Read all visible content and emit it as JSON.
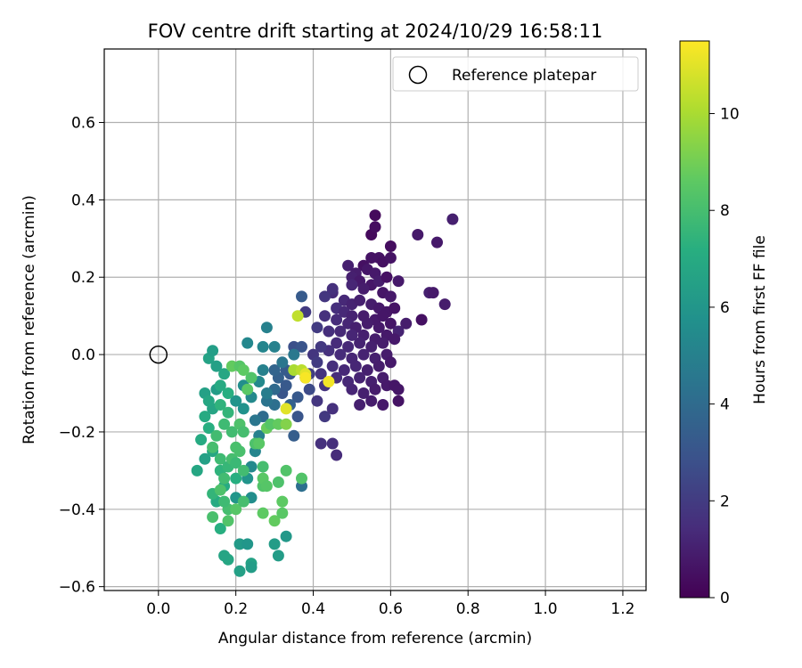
{
  "chart_data": {
    "type": "scatter",
    "title": "FOV centre drift starting at 2024/10/29 16:58:11",
    "xlabel": "Angular distance from reference (arcmin)",
    "ylabel": "Rotation from reference (arcmin)",
    "xlim": [
      -0.14,
      1.26
    ],
    "ylim": [
      -0.61,
      0.79
    ],
    "x_ticks": [
      0.0,
      0.2,
      0.4,
      0.6,
      0.8,
      1.0,
      1.2
    ],
    "x_tick_labels": [
      "0.0",
      "0.2",
      "0.4",
      "0.6",
      "0.8",
      "1.0",
      "1.2"
    ],
    "y_ticks": [
      -0.6,
      -0.4,
      -0.2,
      0.0,
      0.2,
      0.4,
      0.6
    ],
    "y_tick_labels": [
      "−0.6",
      "−0.4",
      "−0.2",
      "0.0",
      "0.2",
      "0.4",
      "0.6"
    ],
    "grid": true,
    "legend": {
      "placement": "top-right",
      "entries": [
        "Reference platepar"
      ]
    },
    "colorbar": {
      "label": "Hours from first FF file",
      "colormap": "viridis",
      "range": [
        0,
        11.5
      ],
      "ticks": [
        0,
        2,
        4,
        6,
        8,
        10
      ],
      "tick_labels": [
        "0",
        "2",
        "4",
        "6",
        "8",
        "10"
      ]
    },
    "reference_point": {
      "x": 0.0,
      "y": 0.0
    },
    "series": [
      {
        "marker": "filled circle",
        "points": [
          [
            0.56,
            0.36,
            0.3
          ],
          [
            0.55,
            0.31,
            0.3
          ],
          [
            0.56,
            0.33,
            0.4
          ],
          [
            0.76,
            0.35,
            1.0
          ],
          [
            0.67,
            0.31,
            0.8
          ],
          [
            0.72,
            0.29,
            0.8
          ],
          [
            0.53,
            0.23,
            0.5
          ],
          [
            0.55,
            0.25,
            0.6
          ],
          [
            0.57,
            0.25,
            0.6
          ],
          [
            0.58,
            0.24,
            0.5
          ],
          [
            0.6,
            0.28,
            0.4
          ],
          [
            0.6,
            0.25,
            0.6
          ],
          [
            0.49,
            0.23,
            1.0
          ],
          [
            0.51,
            0.21,
            0.9
          ],
          [
            0.54,
            0.22,
            0.7
          ],
          [
            0.56,
            0.21,
            0.8
          ],
          [
            0.5,
            0.2,
            1.0
          ],
          [
            0.52,
            0.19,
            0.8
          ],
          [
            0.55,
            0.18,
            0.7
          ],
          [
            0.57,
            0.19,
            0.9
          ],
          [
            0.59,
            0.2,
            0.5
          ],
          [
            0.62,
            0.19,
            0.8
          ],
          [
            0.5,
            0.18,
            1.2
          ],
          [
            0.53,
            0.17,
            0.9
          ],
          [
            0.58,
            0.16,
            0.7
          ],
          [
            0.6,
            0.15,
            0.8
          ],
          [
            0.45,
            0.16,
            1.4
          ],
          [
            0.48,
            0.14,
            1.3
          ],
          [
            0.5,
            0.13,
            1.1
          ],
          [
            0.52,
            0.14,
            1.0
          ],
          [
            0.55,
            0.13,
            0.9
          ],
          [
            0.57,
            0.12,
            0.8
          ],
          [
            0.59,
            0.11,
            0.7
          ],
          [
            0.61,
            0.12,
            0.6
          ],
          [
            0.7,
            0.16,
            1.0
          ],
          [
            0.71,
            0.16,
            0.8
          ],
          [
            0.74,
            0.13,
            0.9
          ],
          [
            0.46,
            0.12,
            1.5
          ],
          [
            0.48,
            0.11,
            1.3
          ],
          [
            0.5,
            0.1,
            1.1
          ],
          [
            0.53,
            0.1,
            0.9
          ],
          [
            0.56,
            0.09,
            0.8
          ],
          [
            0.58,
            0.1,
            0.7
          ],
          [
            0.43,
            0.1,
            1.6
          ],
          [
            0.46,
            0.09,
            1.4
          ],
          [
            0.49,
            0.08,
            1.2
          ],
          [
            0.51,
            0.07,
            1.0
          ],
          [
            0.54,
            0.08,
            0.9
          ],
          [
            0.57,
            0.07,
            0.8
          ],
          [
            0.6,
            0.08,
            0.7
          ],
          [
            0.64,
            0.08,
            0.9
          ],
          [
            0.68,
            0.09,
            0.5
          ],
          [
            0.44,
            0.06,
            1.5
          ],
          [
            0.47,
            0.06,
            1.3
          ],
          [
            0.5,
            0.05,
            1.2
          ],
          [
            0.53,
            0.05,
            1.0
          ],
          [
            0.56,
            0.04,
            0.9
          ],
          [
            0.59,
            0.05,
            0.8
          ],
          [
            0.62,
            0.06,
            1.1
          ],
          [
            0.46,
            0.03,
            1.4
          ],
          [
            0.49,
            0.02,
            1.3
          ],
          [
            0.52,
            0.03,
            1.1
          ],
          [
            0.55,
            0.02,
            1.0
          ],
          [
            0.58,
            0.03,
            0.9
          ],
          [
            0.61,
            0.04,
            0.8
          ],
          [
            0.44,
            0.01,
            1.6
          ],
          [
            0.47,
            0.0,
            1.4
          ],
          [
            0.5,
            -0.01,
            1.2
          ],
          [
            0.53,
            0.0,
            1.1
          ],
          [
            0.56,
            -0.01,
            1.0
          ],
          [
            0.59,
            0.0,
            0.9
          ],
          [
            0.45,
            -0.03,
            1.5
          ],
          [
            0.48,
            -0.04,
            1.3
          ],
          [
            0.51,
            -0.03,
            1.2
          ],
          [
            0.54,
            -0.04,
            1.0
          ],
          [
            0.57,
            -0.03,
            0.9
          ],
          [
            0.6,
            -0.02,
            0.8
          ],
          [
            0.46,
            -0.06,
            1.4
          ],
          [
            0.49,
            -0.07,
            1.3
          ],
          [
            0.52,
            -0.06,
            1.1
          ],
          [
            0.55,
            -0.07,
            1.0
          ],
          [
            0.58,
            -0.06,
            0.9
          ],
          [
            0.5,
            -0.09,
            1.2
          ],
          [
            0.53,
            -0.1,
            1.0
          ],
          [
            0.56,
            -0.09,
            0.9
          ],
          [
            0.59,
            -0.08,
            0.8
          ],
          [
            0.61,
            -0.08,
            0.7
          ],
          [
            0.55,
            -0.12,
            0.9
          ],
          [
            0.52,
            -0.13,
            1.0
          ],
          [
            0.58,
            -0.13,
            0.8
          ],
          [
            0.62,
            -0.09,
            0.7
          ],
          [
            0.62,
            -0.12,
            0.6
          ],
          [
            0.43,
            -0.08,
            1.7
          ],
          [
            0.41,
            -0.12,
            1.8
          ],
          [
            0.43,
            -0.16,
            1.9
          ],
          [
            0.45,
            -0.14,
            1.6
          ],
          [
            0.42,
            -0.23,
            1.6
          ],
          [
            0.45,
            -0.23,
            1.5
          ],
          [
            0.46,
            -0.26,
            1.4
          ],
          [
            0.4,
            0.0,
            1.8
          ],
          [
            0.41,
            -0.02,
            2.0
          ],
          [
            0.42,
            0.02,
            1.9
          ],
          [
            0.39,
            -0.05,
            2.1
          ],
          [
            0.42,
            -0.05,
            1.7
          ],
          [
            0.38,
            0.11,
            2.0
          ],
          [
            0.41,
            0.07,
            2.0
          ],
          [
            0.43,
            0.15,
            1.8
          ],
          [
            0.45,
            0.17,
            1.6
          ],
          [
            0.37,
            0.15,
            3.3
          ],
          [
            0.35,
            0.02,
            2.8
          ],
          [
            0.37,
            0.02,
            3.0
          ],
          [
            0.38,
            -0.06,
            3.1
          ],
          [
            0.39,
            -0.09,
            2.6
          ],
          [
            0.36,
            -0.11,
            3.2
          ],
          [
            0.34,
            -0.13,
            3.5
          ],
          [
            0.36,
            -0.16,
            3.0
          ],
          [
            0.35,
            -0.21,
            3.4
          ],
          [
            0.37,
            -0.34,
            4.2
          ],
          [
            0.32,
            -0.1,
            3.0
          ],
          [
            0.3,
            -0.09,
            3.9
          ],
          [
            0.31,
            -0.06,
            3.5
          ],
          [
            0.33,
            -0.08,
            3.2
          ],
          [
            0.34,
            -0.05,
            3.1
          ],
          [
            0.3,
            -0.04,
            3.7
          ],
          [
            0.33,
            -0.04,
            3.3
          ],
          [
            0.3,
            -0.13,
            4.2
          ],
          [
            0.28,
            -0.12,
            4.4
          ],
          [
            0.27,
            -0.16,
            4.0
          ],
          [
            0.25,
            -0.17,
            4.5
          ],
          [
            0.26,
            -0.21,
            5.0
          ],
          [
            0.27,
            -0.04,
            5.0
          ],
          [
            0.28,
            -0.1,
            4.8
          ],
          [
            0.32,
            -0.02,
            4.5
          ],
          [
            0.35,
            0.0,
            4.6
          ],
          [
            0.28,
            0.07,
            5.0
          ],
          [
            0.27,
            0.02,
            5.2
          ],
          [
            0.23,
            0.03,
            5.3
          ],
          [
            0.3,
            0.02,
            5.0
          ],
          [
            0.22,
            -0.08,
            5.6
          ],
          [
            0.24,
            -0.11,
            5.4
          ],
          [
            0.26,
            -0.07,
            5.4
          ],
          [
            0.2,
            -0.12,
            5.9
          ],
          [
            0.22,
            -0.14,
            5.8
          ],
          [
            0.25,
            -0.25,
            5.2
          ],
          [
            0.24,
            -0.29,
            5.4
          ],
          [
            0.24,
            -0.37,
            5.6
          ],
          [
            0.2,
            -0.37,
            6.0
          ],
          [
            0.23,
            -0.32,
            5.9
          ],
          [
            0.21,
            -0.49,
            6.2
          ],
          [
            0.23,
            -0.49,
            6.0
          ],
          [
            0.33,
            -0.47,
            6.1
          ],
          [
            0.3,
            -0.49,
            6.3
          ],
          [
            0.31,
            -0.52,
            6.3
          ],
          [
            0.24,
            -0.54,
            6.6
          ],
          [
            0.24,
            -0.55,
            6.3
          ],
          [
            0.21,
            -0.56,
            6.5
          ],
          [
            0.18,
            -0.53,
            6.8
          ],
          [
            0.17,
            -0.52,
            6.7
          ],
          [
            0.16,
            -0.45,
            7.2
          ],
          [
            0.15,
            -0.38,
            7.0
          ],
          [
            0.14,
            -0.36,
            7.5
          ],
          [
            0.17,
            -0.34,
            7.0
          ],
          [
            0.2,
            -0.32,
            7.2
          ],
          [
            0.16,
            -0.3,
            7.4
          ],
          [
            0.1,
            -0.3,
            6.8
          ],
          [
            0.12,
            -0.27,
            6.5
          ],
          [
            0.14,
            -0.25,
            6.8
          ],
          [
            0.11,
            -0.22,
            7.0
          ],
          [
            0.13,
            -0.19,
            7.2
          ],
          [
            0.12,
            -0.16,
            7.0
          ],
          [
            0.14,
            -0.14,
            6.7
          ],
          [
            0.12,
            -0.1,
            6.5
          ],
          [
            0.15,
            -0.09,
            6.3
          ],
          [
            0.13,
            -0.12,
            6.8
          ],
          [
            0.15,
            -0.03,
            6.5
          ],
          [
            0.13,
            -0.01,
            6.6
          ],
          [
            0.14,
            0.01,
            6.4
          ],
          [
            0.17,
            -0.05,
            6.8
          ],
          [
            0.16,
            -0.08,
            7.0
          ],
          [
            0.18,
            -0.1,
            7.2
          ],
          [
            0.16,
            -0.13,
            7.4
          ],
          [
            0.18,
            -0.15,
            7.5
          ],
          [
            0.17,
            -0.18,
            7.8
          ],
          [
            0.15,
            -0.21,
            7.9
          ],
          [
            0.14,
            -0.24,
            8.0
          ],
          [
            0.16,
            -0.27,
            7.8
          ],
          [
            0.18,
            -0.29,
            7.6
          ],
          [
            0.17,
            -0.32,
            7.9
          ],
          [
            0.19,
            -0.27,
            8.0
          ],
          [
            0.2,
            -0.24,
            8.1
          ],
          [
            0.19,
            -0.2,
            7.9
          ],
          [
            0.21,
            -0.18,
            8.2
          ],
          [
            0.22,
            -0.2,
            8.0
          ],
          [
            0.2,
            -0.28,
            7.7
          ],
          [
            0.22,
            -0.3,
            7.9
          ],
          [
            0.21,
            -0.25,
            8.1
          ],
          [
            0.16,
            -0.35,
            8.2
          ],
          [
            0.18,
            -0.4,
            8.0
          ],
          [
            0.18,
            -0.43,
            8.3
          ],
          [
            0.14,
            -0.42,
            8.1
          ],
          [
            0.17,
            -0.38,
            7.8
          ],
          [
            0.2,
            -0.4,
            8.4
          ],
          [
            0.22,
            -0.38,
            8.0
          ],
          [
            0.24,
            -0.06,
            8.3
          ],
          [
            0.23,
            -0.09,
            8.5
          ],
          [
            0.19,
            -0.03,
            8.7
          ],
          [
            0.21,
            -0.03,
            8.4
          ],
          [
            0.22,
            -0.04,
            8.6
          ],
          [
            0.25,
            -0.23,
            8.2
          ],
          [
            0.26,
            -0.23,
            8.5
          ],
          [
            0.28,
            -0.19,
            8.8
          ],
          [
            0.29,
            -0.18,
            8.4
          ],
          [
            0.31,
            -0.18,
            8.7
          ],
          [
            0.27,
            -0.29,
            8.0
          ],
          [
            0.27,
            -0.34,
            8.3
          ],
          [
            0.27,
            -0.32,
            8.5
          ],
          [
            0.28,
            -0.34,
            8.4
          ],
          [
            0.31,
            -0.33,
            8.2
          ],
          [
            0.33,
            -0.3,
            8.3
          ],
          [
            0.27,
            -0.41,
            8.6
          ],
          [
            0.3,
            -0.43,
            8.7
          ],
          [
            0.32,
            -0.41,
            8.5
          ],
          [
            0.32,
            -0.38,
            8.6
          ],
          [
            0.37,
            -0.32,
            8.3
          ],
          [
            0.33,
            -0.18,
            9.3
          ],
          [
            0.35,
            -0.04,
            10.0
          ],
          [
            0.37,
            -0.04,
            10.3
          ],
          [
            0.38,
            -0.05,
            11.0
          ],
          [
            0.36,
            0.1,
            10.4
          ],
          [
            0.33,
            -0.14,
            11.0
          ],
          [
            0.44,
            -0.07,
            11.3
          ],
          [
            0.38,
            -0.06,
            11.4
          ]
        ]
      }
    ]
  }
}
